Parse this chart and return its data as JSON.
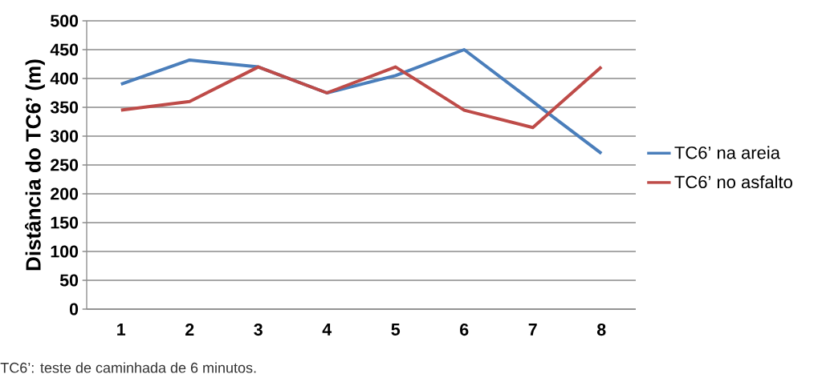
{
  "chart_data": {
    "type": "line",
    "ylabel": "Distância do TC6’ (m)",
    "annotations": [
      "TC6’: teste de caminhada de 6 minutos."
    ],
    "categories": [
      "1",
      "2",
      "3",
      "4",
      "5",
      "6",
      "7",
      "8"
    ],
    "series": [
      {
        "name": "TC6’ na areia",
        "color": "#4a7ebb",
        "values": [
          390,
          432,
          420,
          375,
          405,
          450,
          360,
          270
        ]
      },
      {
        "name": "TC6’ no asfalto",
        "color": "#be4b48",
        "values": [
          345,
          360,
          420,
          375,
          420,
          345,
          315,
          420
        ]
      }
    ],
    "ylim": [
      0,
      500
    ],
    "yticks": [
      0,
      50,
      100,
      150,
      200,
      250,
      300,
      350,
      400,
      450,
      500
    ],
    "grid": "y",
    "legend": "right",
    "marker": "none",
    "line_style": "solid"
  }
}
